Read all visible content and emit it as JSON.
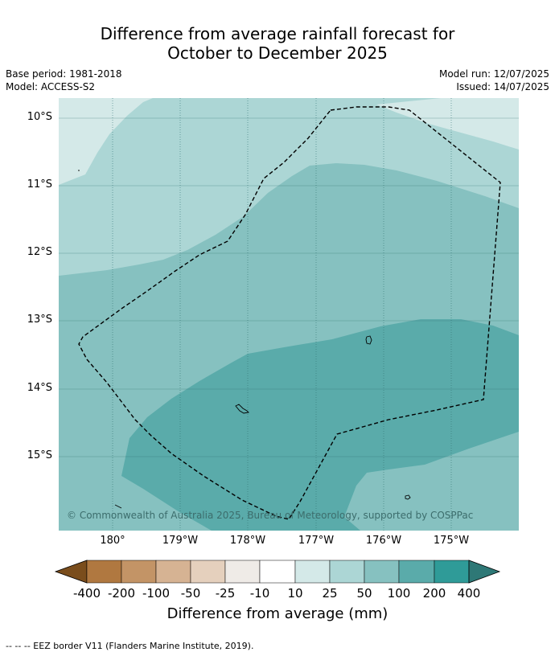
{
  "title": {
    "line1": "Difference from average rainfall forecast for",
    "line2": "October to December 2025"
  },
  "meta": {
    "base_period": "Base period: 1981-2018",
    "model": "Model: ACCESS-S2",
    "model_run": "Model run: 12/07/2025",
    "issued": "Issued: 14/07/2025"
  },
  "map": {
    "latitude_labels": [
      "10°S",
      "11°S",
      "12°S",
      "13°S",
      "14°S",
      "15°S"
    ],
    "longitude_labels": [
      "180°",
      "179°W",
      "178°W",
      "177°W",
      "176°W",
      "175°W"
    ],
    "copyright": "© Commonwealth of Australia 2025, Bureau of Meteorology, supported by COSPPac",
    "colors": {
      "band_10_25": "#d4e9e8",
      "band_25_50": "#acd6d5",
      "band_50_100": "#86c1c0",
      "band_100_200": "#5aabaa",
      "gridline": "#2f6f6e",
      "eez_line": "#000000"
    }
  },
  "colorbar": {
    "ticks": [
      "-400",
      "-200",
      "-100",
      "-50",
      "-25",
      "-10",
      "10",
      "25",
      "50",
      "100",
      "200",
      "400"
    ],
    "colors": [
      "#7a4d1c",
      "#b07840",
      "#c39466",
      "#d6b393",
      "#e5d0bd",
      "#efebe7",
      "#ffffff",
      "#d4e9e8",
      "#acd6d5",
      "#86c1c0",
      "#5aabaa",
      "#2f9b98",
      "#2e7876"
    ],
    "label": "Difference from average (mm)"
  },
  "footer": "-- -- -- EEZ border V11 (Flanders Marine Institute, 2019)."
}
